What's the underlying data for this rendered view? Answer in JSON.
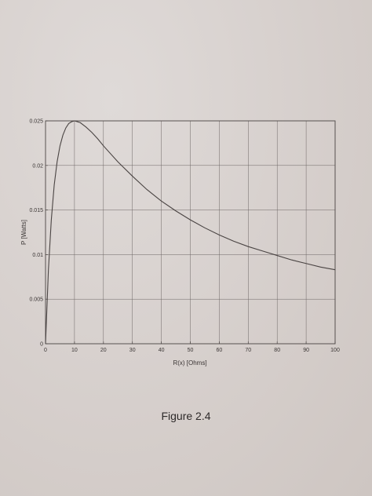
{
  "caption": "Figure 2.4",
  "chart_data": {
    "type": "line",
    "title": "",
    "xlabel": "R(x) [Ohms]",
    "ylabel": "P [Watts]",
    "xlim": [
      0,
      100
    ],
    "ylim": [
      0,
      0.025
    ],
    "xticks": [
      "0",
      "10",
      "20",
      "30",
      "40",
      "50",
      "60",
      "70",
      "80",
      "90",
      "100"
    ],
    "yticks": [
      "0",
      "0.005",
      "0.01",
      "0.015",
      "0.02",
      "0.025"
    ],
    "grid": true,
    "series": [
      {
        "x": [
          0,
          1,
          2,
          3,
          4,
          5,
          6,
          7,
          8,
          9,
          10,
          12,
          14,
          16,
          18,
          20,
          25,
          30,
          35,
          40,
          45,
          50,
          55,
          60,
          65,
          70,
          75,
          80,
          85,
          90,
          95,
          100
        ],
        "y": [
          0,
          0.0083,
          0.0139,
          0.0178,
          0.0204,
          0.0222,
          0.0234,
          0.0242,
          0.0247,
          0.0249,
          0.025,
          0.0248,
          0.0243,
          0.0237,
          0.023,
          0.0222,
          0.0204,
          0.0188,
          0.0173,
          0.016,
          0.0149,
          0.0139,
          0.013,
          0.0122,
          0.0115,
          0.0109,
          0.0104,
          0.0099,
          0.0094,
          0.009,
          0.0086,
          0.0083
        ],
        "color": "#4a4443"
      }
    ]
  }
}
